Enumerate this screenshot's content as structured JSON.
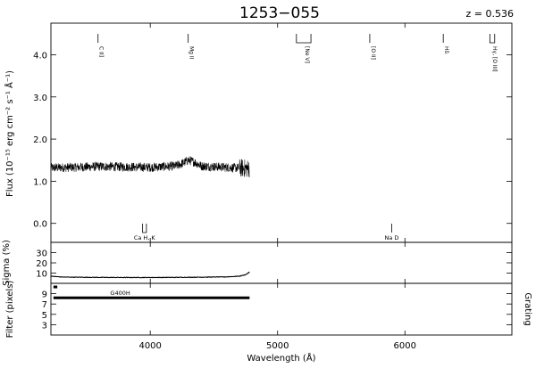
{
  "chart_data": {
    "type": "line",
    "title": "1253−055",
    "redshift_label": "z = 0.536",
    "xlabel": "Wavelength (Å)",
    "xlim": [
      3220,
      6840
    ],
    "x_ticks": [
      4000,
      5000,
      6000
    ],
    "panels": {
      "flux": {
        "ylabel": "Flux (10⁻¹⁵ erg cm⁻² s⁻¹ Å⁻¹)",
        "ylim": [
          -0.45,
          4.75
        ],
        "y_ticks": [
          "0.0",
          "1.0",
          "2.0",
          "3.0",
          "4.0"
        ],
        "y_tick_values": [
          0,
          1,
          2,
          3,
          4
        ],
        "series": [
          {
            "x": [
              3220,
              3400,
              3600,
              3800,
              4000,
              4200,
              4250,
              4300,
              4350,
              4400,
              4600,
              4780
            ],
            "y": [
              1.32,
              1.33,
              1.35,
              1.34,
              1.33,
              1.36,
              1.42,
              1.5,
              1.45,
              1.36,
              1.33,
              1.3
            ]
          }
        ],
        "emission_lines": [
          {
            "label": "C II]",
            "x": 3590,
            "bracket": false
          },
          {
            "label": "Mg II",
            "x": 4298,
            "bracket": false
          },
          {
            "label": "[Ne V]",
            "x": 5207,
            "bracket": true,
            "x0": 5148,
            "x1": 5262
          },
          {
            "label": "[O II]",
            "x": 5724,
            "bracket": false
          },
          {
            "label": "Hδ",
            "x": 6301,
            "bracket": false
          },
          {
            "label": "Hγ, [O III]",
            "x": 6680,
            "bracket": true,
            "x0": 6667,
            "x1": 6705
          }
        ],
        "absorption_lines": [
          {
            "label": "Ca H, K",
            "x": 3955,
            "bracket": true,
            "x0": 3940,
            "x1": 3970
          },
          {
            "label": "Na D",
            "x": 5896,
            "bracket": false
          }
        ]
      },
      "sigma": {
        "ylabel": "Sigma (%)",
        "ylim": [
          0,
          40
        ],
        "y_ticks": [
          "30",
          "20",
          "10"
        ],
        "y_tick_values": [
          30,
          20,
          10
        ],
        "series": [
          {
            "x": [
              3220,
              3300,
              3400,
              3600,
              3800,
              4000,
              4200,
              4400,
              4600,
              4700,
              4750,
              4780
            ],
            "y": [
              7.0,
              6.2,
              6.0,
              5.8,
              5.7,
              5.7,
              5.8,
              6.0,
              6.3,
              7.0,
              8.5,
              11.0
            ]
          }
        ]
      },
      "filter": {
        "ylabel": "Filter (pixels)",
        "right_label": "Grating",
        "ylim": [
          1,
          11
        ],
        "y_ticks": [
          "9",
          "7",
          "5",
          "3"
        ],
        "y_tick_values": [
          9,
          7,
          5,
          3
        ],
        "grating_bar": {
          "label": "G400H",
          "x0": 3240,
          "x1": 4780,
          "y": 8.2
        },
        "filter_bar": {
          "x0": 3240,
          "x1": 3270,
          "y": 10.3
        }
      }
    }
  }
}
